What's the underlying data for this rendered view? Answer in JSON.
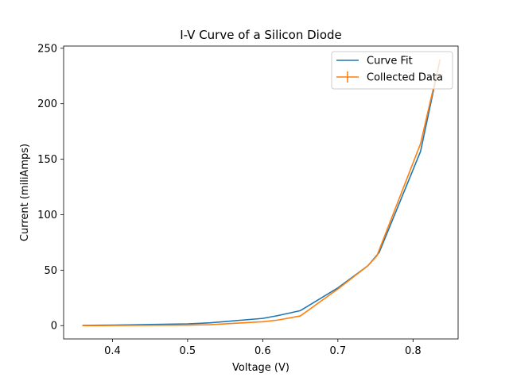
{
  "chart_data": {
    "type": "line",
    "title": "I-V Curve of a Silicon Diode",
    "xlabel": "Voltage (V)",
    "ylabel": "Current (miliAmps)",
    "xlim": [
      0.335,
      0.86
    ],
    "ylim": [
      -12,
      252
    ],
    "xticks": [
      0.4,
      0.5,
      0.6,
      0.7,
      0.8
    ],
    "xtick_labels": [
      "0.4",
      "0.5",
      "0.6",
      "0.7",
      "0.8"
    ],
    "yticks": [
      0,
      50,
      100,
      150,
      200,
      250
    ],
    "ytick_labels": [
      "0",
      "50",
      "100",
      "150",
      "200",
      "250"
    ],
    "grid": false,
    "legend_position": "top-right",
    "series": [
      {
        "name": "Curve Fit",
        "color": "#1f77b4",
        "x": [
          0.36,
          0.4,
          0.5,
          0.53,
          0.6,
          0.62,
          0.65,
          0.7,
          0.74,
          0.755,
          0.81,
          0.836
        ],
        "y": [
          0.2,
          0.5,
          1.6,
          2.5,
          6.5,
          9,
          13.5,
          34,
          54,
          66,
          157,
          240
        ]
      },
      {
        "name": "Collected Data",
        "color": "#ff7f0e",
        "errorbar": true,
        "x": [
          0.36,
          0.4,
          0.5,
          0.53,
          0.6,
          0.62,
          0.65,
          0.7,
          0.74,
          0.752,
          0.81,
          0.836
        ],
        "y": [
          0.0,
          0.1,
          0.5,
          0.8,
          3.5,
          5,
          8.7,
          33,
          54,
          63,
          164,
          240
        ]
      }
    ]
  }
}
